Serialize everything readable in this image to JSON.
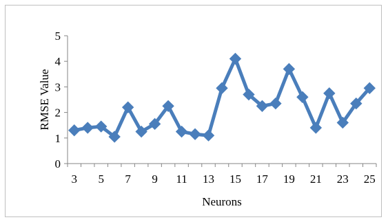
{
  "chart_data": {
    "type": "line",
    "title": "",
    "xlabel": "Neurons",
    "ylabel": "RMSE Value",
    "x": [
      3,
      4,
      5,
      6,
      7,
      8,
      9,
      10,
      11,
      12,
      13,
      14,
      15,
      16,
      17,
      18,
      19,
      20,
      21,
      22,
      23,
      24,
      25
    ],
    "x_tick_labels": [
      "3",
      "5",
      "7",
      "9",
      "11",
      "13",
      "15",
      "17",
      "19",
      "21",
      "23",
      "25"
    ],
    "y_tick_labels": [
      "0",
      "1",
      "2",
      "3",
      "4",
      "5"
    ],
    "ylim": [
      0,
      5
    ],
    "grid": false,
    "series": [
      {
        "values": [
          1.3,
          1.4,
          1.45,
          1.05,
          2.2,
          1.25,
          1.55,
          2.25,
          1.25,
          1.15,
          1.1,
          2.95,
          4.1,
          2.7,
          2.25,
          2.35,
          3.7,
          2.6,
          1.4,
          2.75,
          1.6,
          2.35,
          2.95
        ],
        "color": "#4a7ebb",
        "marker": "diamond"
      }
    ]
  }
}
